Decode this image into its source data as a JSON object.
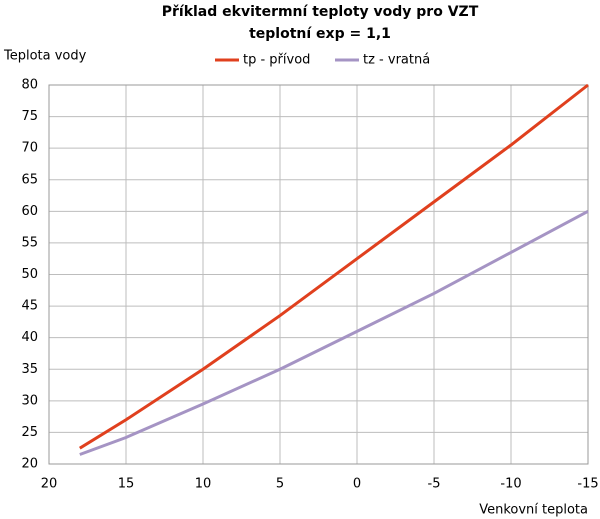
{
  "chart_data": {
    "type": "line",
    "title": "Příklad ekvitermní teploty vody pro VZT",
    "subtitle": "teplotní exp = 1,1",
    "y_label": "Teplota vody",
    "x_label": "Venkovní teplota",
    "x": [
      18,
      15,
      10,
      5,
      0,
      -5,
      -10,
      -15
    ],
    "series": [
      {
        "name": "tp - přívod",
        "color": "#e0401e",
        "values": [
          22.5,
          27,
          35,
          43.5,
          52.5,
          61.5,
          70.5,
          80
        ]
      },
      {
        "name": "tz - vratná",
        "color": "#a594c4",
        "values": [
          21.5,
          24.2,
          29.5,
          35,
          41,
          47,
          53.5,
          60
        ]
      }
    ],
    "xlim": [
      20,
      -15
    ],
    "xticks": [
      20,
      15,
      10,
      5,
      0,
      -5,
      -10,
      -15
    ],
    "ylim": [
      20,
      80
    ],
    "yticks": [
      20,
      25,
      30,
      35,
      40,
      45,
      50,
      55,
      60,
      65,
      70,
      75,
      80
    ],
    "grid": true,
    "legend": "top"
  }
}
